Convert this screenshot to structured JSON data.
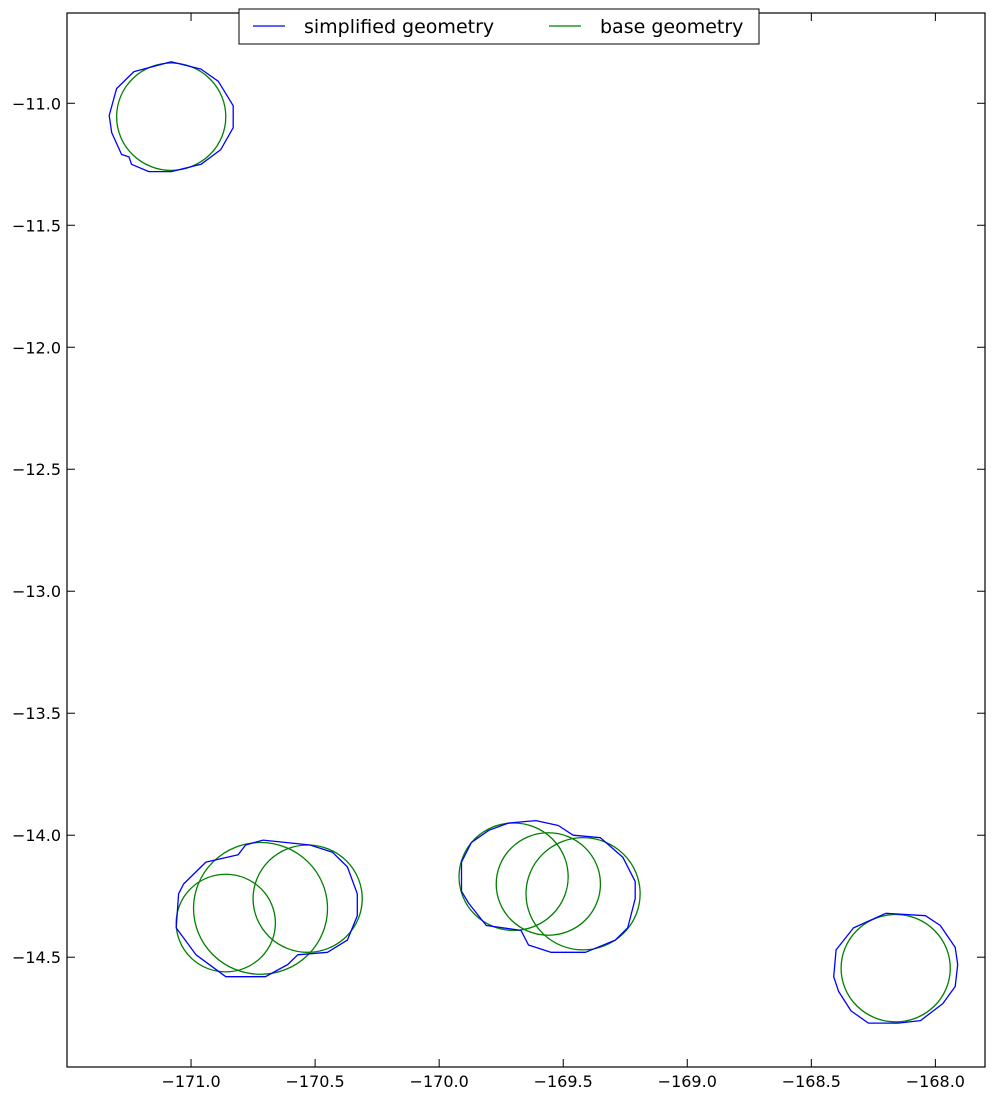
{
  "chart_data": {
    "type": "line",
    "title": "",
    "xlabel": "",
    "ylabel": "",
    "xlim": [
      -171.5,
      -167.8
    ],
    "ylim": [
      -14.95,
      -10.63
    ],
    "x_ticks": [
      -171.0,
      -170.5,
      -170.0,
      -169.5,
      -169.0,
      -168.5,
      -168.0
    ],
    "x_tick_labels": [
      "−171.0",
      "−170.5",
      "−170.0",
      "−169.5",
      "−169.0",
      "−168.5",
      "−168.0"
    ],
    "y_ticks": [
      -11.0,
      -11.5,
      -12.0,
      -12.5,
      -13.0,
      -13.5,
      -14.0,
      -14.5
    ],
    "y_tick_labels": [
      "−11.0",
      "−11.5",
      "−12.0",
      "−12.5",
      "−13.0",
      "−13.5",
      "−14.0",
      "−14.5"
    ],
    "grid": false,
    "legend_position": "top-center",
    "series": [
      {
        "name": "simplified geometry",
        "color": "#0000ff",
        "polygons": [
          [
            [
              -171.08,
              -10.83
            ],
            [
              -170.96,
              -10.86
            ],
            [
              -170.89,
              -10.91
            ],
            [
              -170.83,
              -11.01
            ],
            [
              -170.83,
              -11.1
            ],
            [
              -170.88,
              -11.19
            ],
            [
              -170.96,
              -11.25
            ],
            [
              -171.08,
              -11.28
            ],
            [
              -171.17,
              -11.28
            ],
            [
              -171.24,
              -11.25
            ],
            [
              -171.25,
              -11.22
            ],
            [
              -171.28,
              -11.21
            ],
            [
              -171.32,
              -11.12
            ],
            [
              -171.33,
              -11.05
            ],
            [
              -171.3,
              -10.94
            ],
            [
              -171.23,
              -10.87
            ],
            [
              -171.08,
              -10.83
            ]
          ],
          [
            [
              -170.71,
              -14.02
            ],
            [
              -170.52,
              -14.04
            ],
            [
              -170.43,
              -14.07
            ],
            [
              -170.37,
              -14.13
            ],
            [
              -170.33,
              -14.24
            ],
            [
              -170.33,
              -14.33
            ],
            [
              -170.37,
              -14.43
            ],
            [
              -170.45,
              -14.48
            ],
            [
              -170.57,
              -14.49
            ],
            [
              -170.61,
              -14.53
            ],
            [
              -170.7,
              -14.58
            ],
            [
              -170.86,
              -14.58
            ],
            [
              -170.98,
              -14.49
            ],
            [
              -171.06,
              -14.38
            ],
            [
              -171.05,
              -14.24
            ],
            [
              -171.03,
              -14.2
            ],
            [
              -170.94,
              -14.11
            ],
            [
              -170.81,
              -14.08
            ],
            [
              -170.78,
              -14.04
            ],
            [
              -170.71,
              -14.02
            ]
          ],
          [
            [
              -169.61,
              -13.94
            ],
            [
              -169.52,
              -13.96
            ],
            [
              -169.46,
              -14.0
            ],
            [
              -169.35,
              -14.01
            ],
            [
              -169.26,
              -14.09
            ],
            [
              -169.21,
              -14.19
            ],
            [
              -169.21,
              -14.26
            ],
            [
              -169.24,
              -14.38
            ],
            [
              -169.29,
              -14.43
            ],
            [
              -169.41,
              -14.48
            ],
            [
              -169.55,
              -14.48
            ],
            [
              -169.64,
              -14.45
            ],
            [
              -169.67,
              -14.39
            ],
            [
              -169.81,
              -14.37
            ],
            [
              -169.88,
              -14.28
            ],
            [
              -169.91,
              -14.23
            ],
            [
              -169.91,
              -14.11
            ],
            [
              -169.87,
              -14.03
            ],
            [
              -169.8,
              -13.98
            ],
            [
              -169.72,
              -13.95
            ],
            [
              -169.61,
              -13.94
            ]
          ],
          [
            [
              -168.2,
              -14.32
            ],
            [
              -168.04,
              -14.33
            ],
            [
              -167.98,
              -14.37
            ],
            [
              -167.92,
              -14.46
            ],
            [
              -167.91,
              -14.53
            ],
            [
              -167.92,
              -14.62
            ],
            [
              -167.97,
              -14.69
            ],
            [
              -168.06,
              -14.76
            ],
            [
              -168.15,
              -14.77
            ],
            [
              -168.27,
              -14.77
            ],
            [
              -168.34,
              -14.72
            ],
            [
              -168.39,
              -14.64
            ],
            [
              -168.41,
              -14.58
            ],
            [
              -168.4,
              -14.47
            ],
            [
              -168.33,
              -14.38
            ],
            [
              -168.2,
              -14.32
            ]
          ]
        ]
      },
      {
        "name": "base geometry",
        "color": "#008000",
        "circles": [
          {
            "cx": -171.08,
            "cy": -11.055,
            "r": 0.22
          },
          {
            "cx": -170.72,
            "cy": -14.3,
            "r": 0.27
          },
          {
            "cx": -170.86,
            "cy": -14.36,
            "r": 0.2
          },
          {
            "cx": -170.53,
            "cy": -14.26,
            "r": 0.22
          },
          {
            "cx": -169.7,
            "cy": -14.17,
            "r": 0.22
          },
          {
            "cx": -169.42,
            "cy": -14.24,
            "r": 0.23
          },
          {
            "cx": -169.56,
            "cy": -14.2,
            "r": 0.21
          },
          {
            "cx": -168.16,
            "cy": -14.545,
            "r": 0.22
          }
        ]
      }
    ]
  }
}
